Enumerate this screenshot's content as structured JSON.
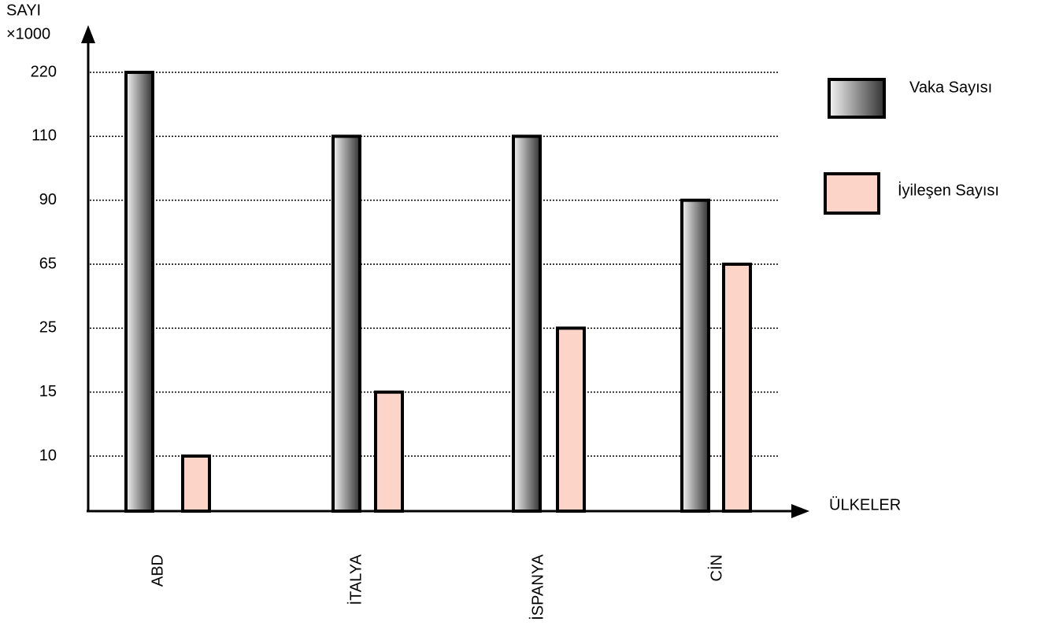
{
  "chart_data": {
    "type": "bar",
    "y_label": "SAYI\n×1000",
    "y_label_lines": [
      "SAYI",
      "×1000"
    ],
    "x_label": "ÜLKELER",
    "categories": [
      "ABD",
      "İTALYA",
      "İSPANYA",
      "CİN"
    ],
    "series": [
      {
        "name": "Vaka Sayısı",
        "color": "#333333",
        "values": [
          220,
          110,
          110,
          90
        ]
      },
      {
        "name": "İyileşen Sayısı",
        "color": "#fdd5c8",
        "values": [
          10,
          15,
          25,
          65
        ]
      }
    ],
    "ylim": [
      0,
      220
    ],
    "yticks": [
      10,
      15,
      25,
      65,
      90,
      110,
      220
    ],
    "grid": true
  }
}
